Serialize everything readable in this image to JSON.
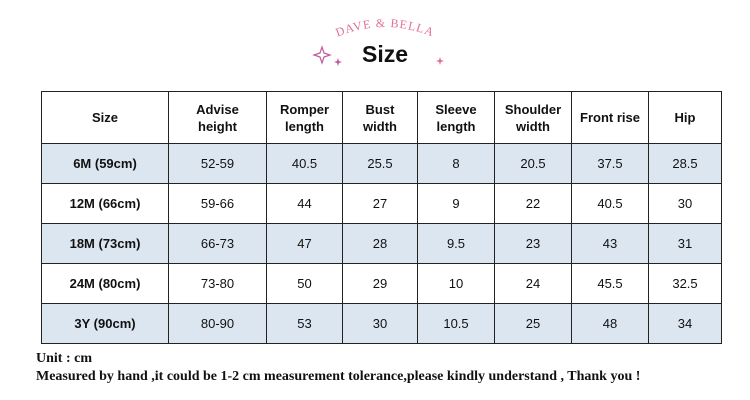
{
  "brand": "DAVE & BELLA",
  "title": "Size",
  "table": {
    "header": [
      "Size",
      "Advise height",
      "Romper length",
      "Bust width",
      "Sleeve length",
      "Shoulder width",
      "Front rise",
      "Hip"
    ],
    "rows": [
      [
        "6M (59cm)",
        "52-59",
        "40.5",
        "25.5",
        "8",
        "20.5",
        "37.5",
        "28.5"
      ],
      [
        "12M (66cm)",
        "59-66",
        "44",
        "27",
        "9",
        "22",
        "40.5",
        "30"
      ],
      [
        "18M (73cm)",
        "66-73",
        "47",
        "28",
        "9.5",
        "23",
        "43",
        "31"
      ],
      [
        "24M (80cm)",
        "73-80",
        "50",
        "29",
        "10",
        "24",
        "45.5",
        "32.5"
      ],
      [
        "3Y (90cm)",
        "80-90",
        "53",
        "30",
        "10.5",
        "25",
        "48",
        "34"
      ]
    ]
  },
  "notes": [
    "Unit : cm",
    "Measured by hand ,it could be 1-2 cm measurement tolerance,please kindly understand , Thank you !"
  ]
}
